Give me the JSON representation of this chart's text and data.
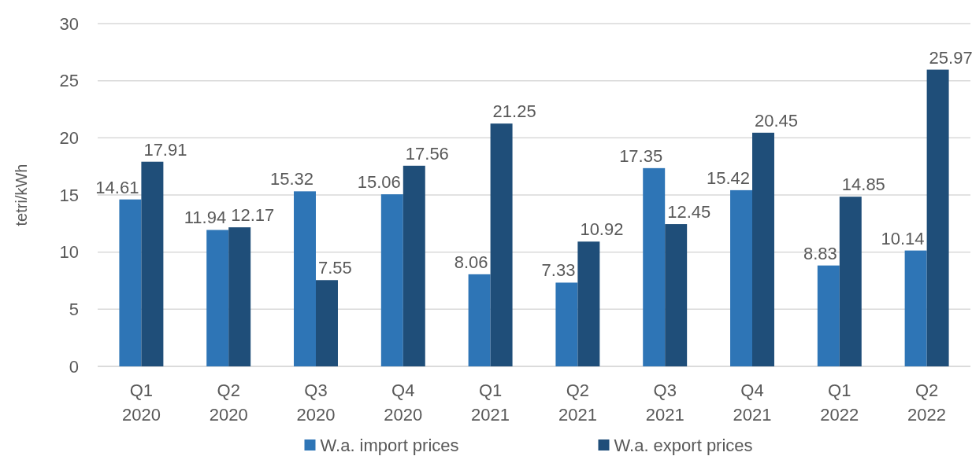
{
  "chart_data": {
    "type": "bar",
    "ylabel": "tetri/kWh",
    "categories": [
      "Q1 2020",
      "Q2 2020",
      "Q3 2020",
      "Q4 2020",
      "Q1 2021",
      "Q2 2021",
      "Q3 2021",
      "Q4 2021",
      "Q1 2022",
      "Q2 2022"
    ],
    "series": [
      {
        "name": "W.a. import prices",
        "color": "#2e75b6",
        "values": [
          14.61,
          11.94,
          15.32,
          15.06,
          8.06,
          7.33,
          17.35,
          15.42,
          8.83,
          10.14
        ]
      },
      {
        "name": "W.a. export prices",
        "color": "#1f4e79",
        "values": [
          17.91,
          12.17,
          7.55,
          17.56,
          21.25,
          10.92,
          12.45,
          20.45,
          14.85,
          25.97
        ]
      }
    ],
    "ylim": [
      0,
      30
    ],
    "yticks": [
      0,
      5,
      10,
      15,
      20,
      25,
      30
    ],
    "grid": "y",
    "legend": "bottom",
    "data_labels": true
  }
}
